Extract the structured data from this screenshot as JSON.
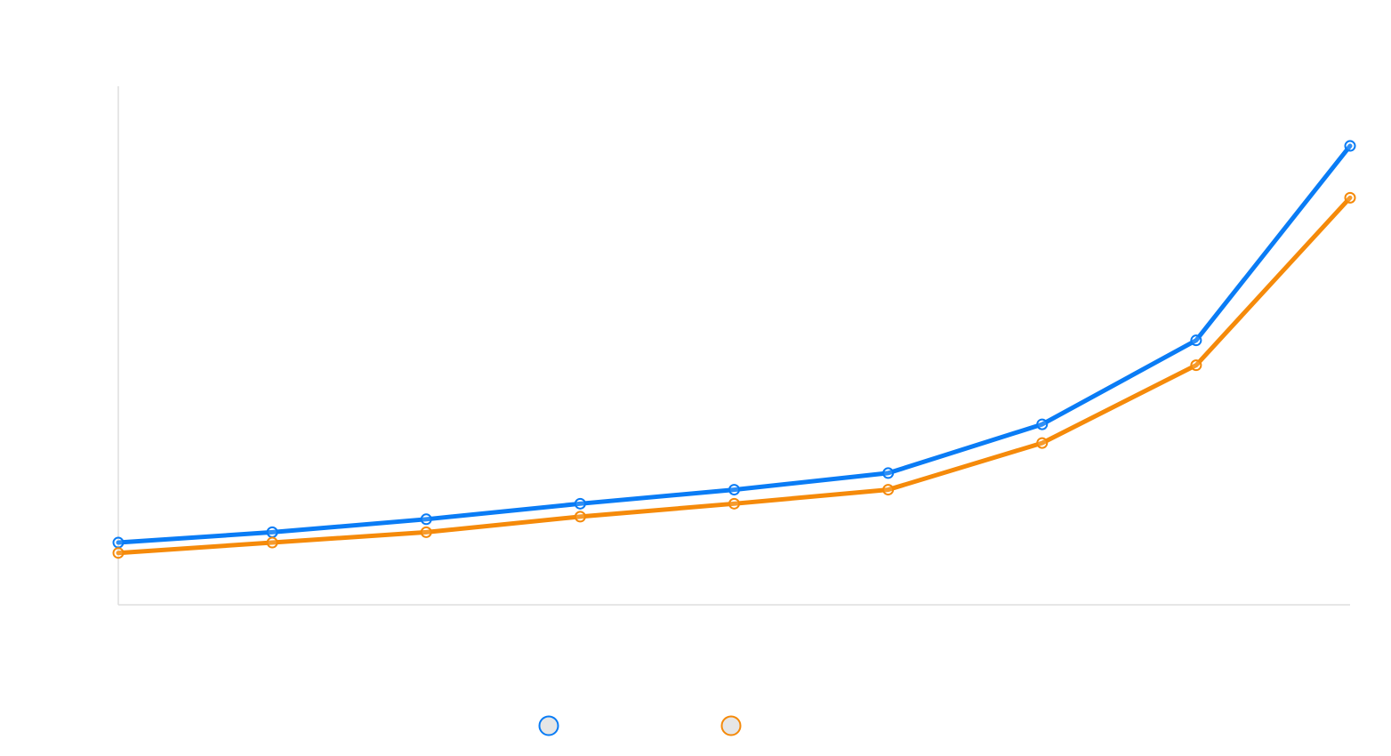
{
  "colors": {
    "series_1": "#0a7cf5",
    "series_2": "#f58a0a",
    "axis": "#dddddd"
  },
  "chart_data": {
    "type": "line",
    "title": "",
    "xlabel": "",
    "ylabel": "",
    "x": [
      1,
      2,
      3,
      4,
      5,
      6,
      7,
      8,
      9
    ],
    "xlim": [
      1,
      9
    ],
    "ylim": [
      0,
      100
    ],
    "grid": false,
    "legend": "bottom-center",
    "series": [
      {
        "name": "",
        "color": "#0a7cf5",
        "values": [
          12,
          14,
          16.5,
          19.5,
          22.2,
          25.4,
          34.8,
          51,
          88.5
        ]
      },
      {
        "name": "",
        "color": "#f58a0a",
        "values": [
          10,
          12,
          14,
          17,
          19.5,
          22.2,
          31.2,
          46.2,
          78.5
        ]
      }
    ]
  }
}
